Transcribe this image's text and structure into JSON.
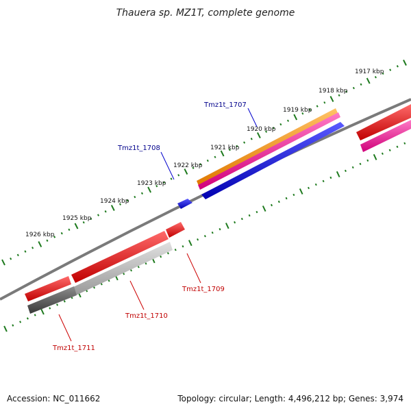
{
  "title": "Thauera sp. MZ1T, complete genome",
  "scale_labels": [
    "1917 kbp",
    "1918 kbp",
    "1919 kbp",
    "1920 kbp",
    "1921 kbp",
    "1922 kbp",
    "1923 kbp",
    "1924 kbp",
    "1925 kbp",
    "1926 kbp"
  ],
  "genes": {
    "tmz1t_1707": "Tmz1t_1707",
    "tmz1t_1708": "Tmz1t_1708",
    "tmz1t_1709": "Tmz1t_1709",
    "tmz1t_1710": "Tmz1t_1710",
    "tmz1t_1711": "Tmz1t_1711"
  },
  "footer": {
    "accession": "Accession: NC_011662",
    "topology": "Topology: circular; Length: 4,496,212 bp; Genes: 3,974"
  },
  "colors": {
    "backbone": "#7a7a7a",
    "ticks": "#1e7a1e",
    "orange": "#ff9900",
    "magenta": "#ff1493",
    "blue": "#0000ee",
    "red": "#ee0000",
    "gray": "#aaaaaa",
    "dark_gray": "#555555"
  }
}
